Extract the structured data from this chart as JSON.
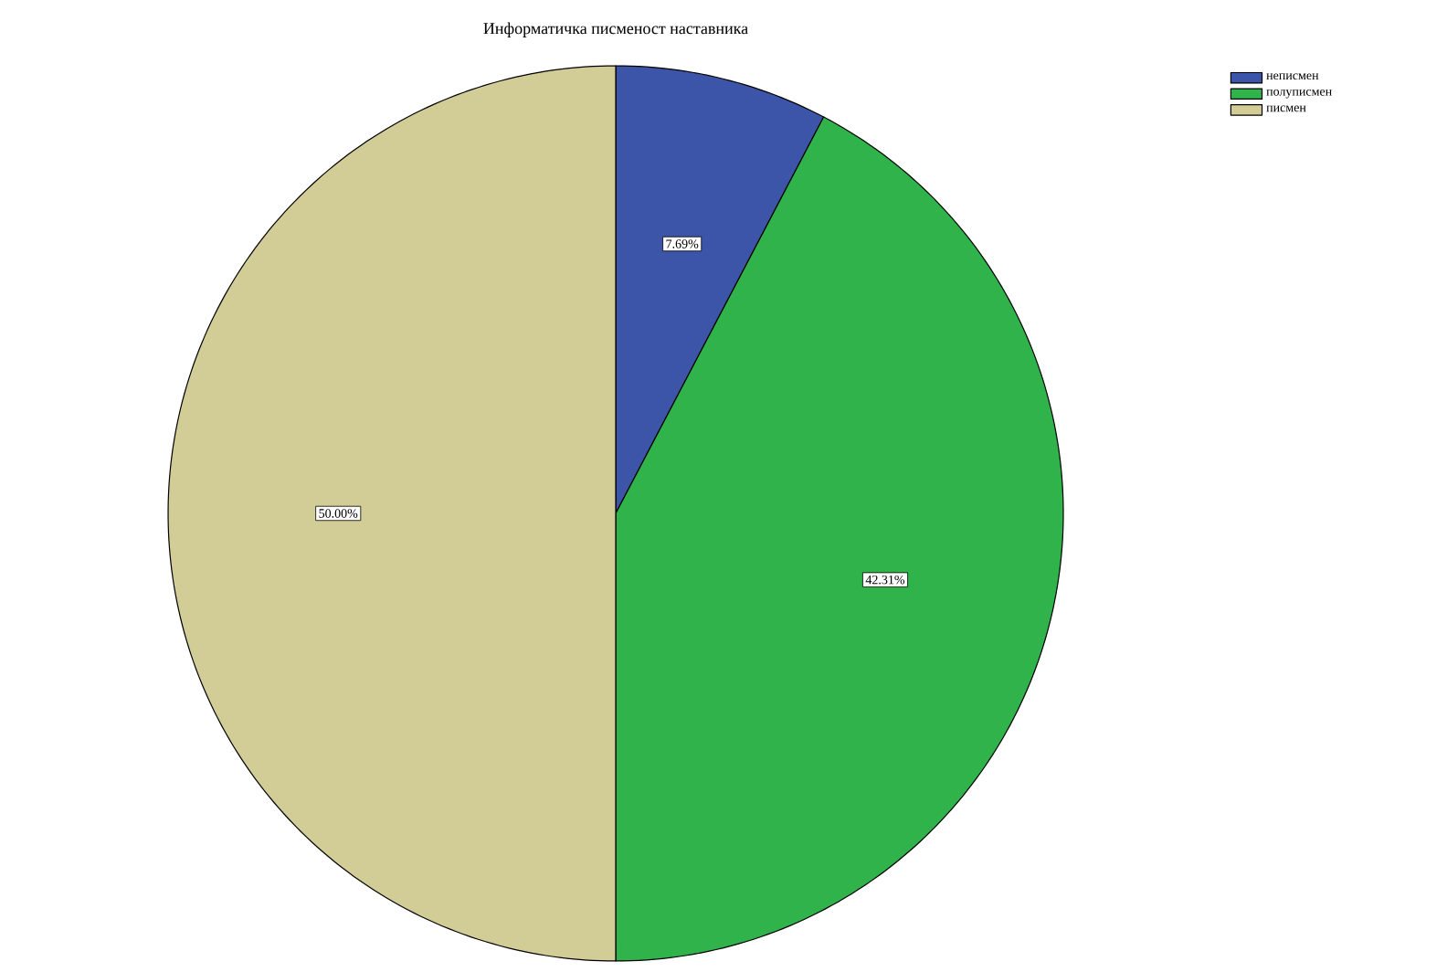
{
  "chart_data": {
    "type": "pie",
    "title": "Информатичка писменост наставника",
    "categories": [
      "неписмен",
      "полуписмен",
      "писмен"
    ],
    "values": [
      7.69,
      42.31,
      50.0
    ],
    "value_labels": [
      "7.69%",
      "42.31%",
      "50.00%"
    ],
    "colors": [
      "#3c55a8",
      "#2fb34a",
      "#d2cc96"
    ],
    "legend": "top right"
  }
}
